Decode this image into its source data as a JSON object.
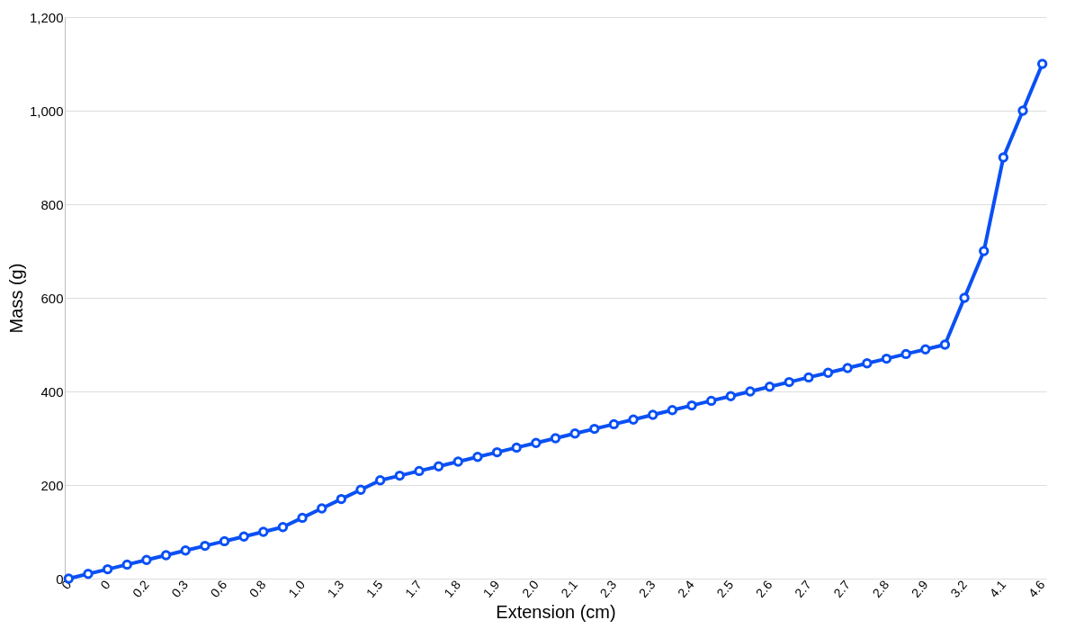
{
  "chart_data": {
    "type": "line",
    "xlabel": "Extension (cm)",
    "ylabel": "Mass (g)",
    "categories": [
      "0",
      null,
      "0",
      null,
      "0.2",
      null,
      "0.3",
      null,
      "0.6",
      null,
      "0.8",
      null,
      "1.0",
      null,
      "1.3",
      null,
      "1.5",
      null,
      "1.7",
      null,
      "1.8",
      null,
      "1.9",
      null,
      "2.0",
      null,
      "2.1",
      null,
      "2.3",
      null,
      "2.3",
      null,
      "2.4",
      null,
      "2.5",
      null,
      "2.6",
      null,
      "2.7",
      null,
      "2.7",
      null,
      "2.8",
      null,
      "2.9",
      null,
      "3.2",
      null,
      "4.1",
      null,
      "4.6"
    ],
    "series": [
      {
        "color": "#0a50f5",
        "values": [
          0,
          10,
          20,
          30,
          40,
          50,
          60,
          70,
          80,
          90,
          100,
          110,
          130,
          150,
          170,
          190,
          210,
          220,
          230,
          240,
          250,
          260,
          270,
          280,
          290,
          300,
          310,
          320,
          330,
          340,
          350,
          360,
          370,
          380,
          390,
          400,
          410,
          420,
          430,
          440,
          450,
          460,
          470,
          480,
          490,
          500,
          600,
          700,
          900,
          1000,
          1100
        ]
      }
    ],
    "ylim": [
      0,
      1200
    ],
    "yticks": [
      0,
      200,
      400,
      600,
      800,
      {
        "value": 1000,
        "label": "1,000"
      },
      {
        "value": 1200,
        "label": "1,200"
      }
    ],
    "grid": "y",
    "marker": "circle",
    "line_style": "solid"
  }
}
